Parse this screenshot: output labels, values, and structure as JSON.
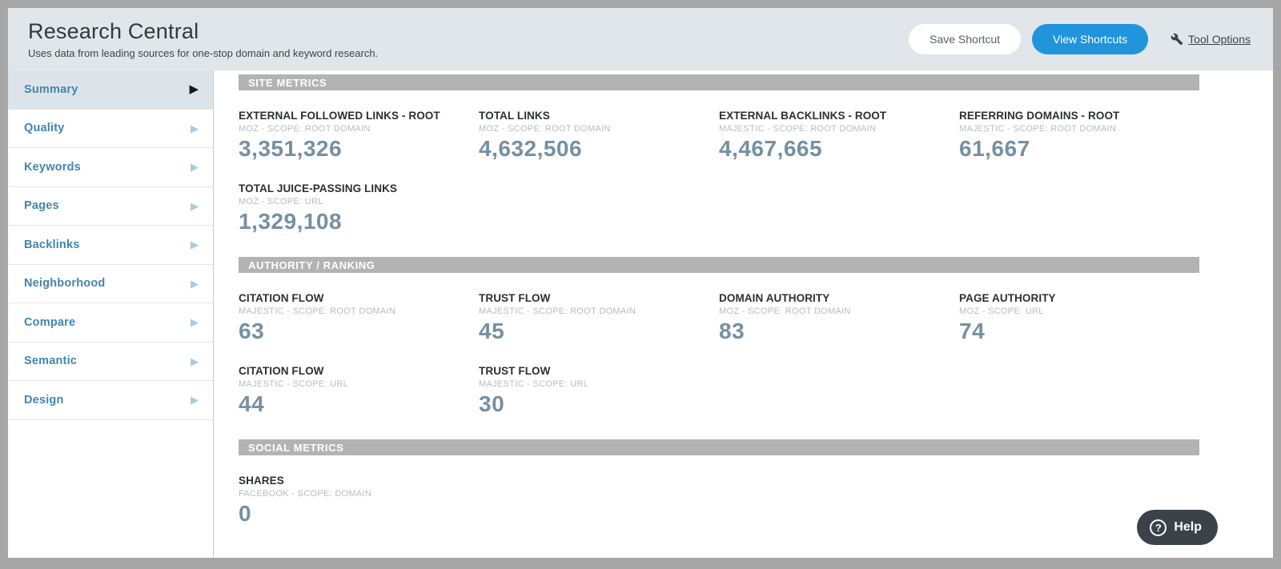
{
  "header": {
    "title": "Research Central",
    "subtitle": "Uses data from leading sources for one-stop domain and keyword research.",
    "save_shortcut_label": "Save Shortcut",
    "view_shortcuts_label": "View Shortcuts",
    "tool_options_label": "Tool Options"
  },
  "sidebar": {
    "items": [
      {
        "label": "Summary",
        "selected": true
      },
      {
        "label": "Quality",
        "selected": false
      },
      {
        "label": "Keywords",
        "selected": false
      },
      {
        "label": "Pages",
        "selected": false
      },
      {
        "label": "Backlinks",
        "selected": false
      },
      {
        "label": "Neighborhood",
        "selected": false
      },
      {
        "label": "Compare",
        "selected": false
      },
      {
        "label": "Semantic",
        "selected": false
      },
      {
        "label": "Design",
        "selected": false
      }
    ]
  },
  "sections": [
    {
      "title": "SITE METRICS",
      "metrics": [
        {
          "name": "EXTERNAL FOLLOWED LINKS - ROOT",
          "source": "MOZ - SCOPE: ROOT DOMAIN",
          "value": "3,351,326"
        },
        {
          "name": "TOTAL LINKS",
          "source": "MOZ - SCOPE: ROOT DOMAIN",
          "value": "4,632,506"
        },
        {
          "name": "EXTERNAL BACKLINKS - ROOT",
          "source": "MAJESTIC - SCOPE: ROOT DOMAIN",
          "value": "4,467,665"
        },
        {
          "name": "REFERRING DOMAINS - ROOT",
          "source": "MAJESTIC - SCOPE: ROOT DOMAIN",
          "value": "61,667"
        },
        {
          "name": "TOTAL JUICE-PASSING LINKS",
          "source": "MOZ - SCOPE: URL",
          "value": "1,329,108"
        }
      ]
    },
    {
      "title": "AUTHORITY / RANKING",
      "metrics": [
        {
          "name": "CITATION FLOW",
          "source": "MAJESTIC - SCOPE: ROOT DOMAIN",
          "value": "63"
        },
        {
          "name": "TRUST FLOW",
          "source": "MAJESTIC - SCOPE: ROOT DOMAIN",
          "value": "45"
        },
        {
          "name": "DOMAIN AUTHORITY",
          "source": "MOZ - SCOPE: ROOT DOMAIN",
          "value": "83"
        },
        {
          "name": "PAGE AUTHORITY",
          "source": "MOZ - SCOPE: URL",
          "value": "74"
        },
        {
          "name": "CITATION FLOW",
          "source": "MAJESTIC - SCOPE: URL",
          "value": "44"
        },
        {
          "name": "TRUST FLOW",
          "source": "MAJESTIC - SCOPE: URL",
          "value": "30"
        }
      ]
    },
    {
      "title": "SOCIAL METRICS",
      "metrics": [
        {
          "name": "SHARES",
          "source": "FACEBOOK - SCOPE: DOMAIN",
          "value": "0"
        }
      ]
    }
  ],
  "help": {
    "label": "Help"
  },
  "colors": {
    "accent_blue": "#2095dc",
    "value_steel_blue": "#7590a3",
    "sidebar_link_blue": "#4186ae",
    "section_bar_gray": "#b3b3b3",
    "header_band": "#e0e6ea",
    "help_charcoal": "#3b424a",
    "frame_gray": "#a6a6a6"
  }
}
